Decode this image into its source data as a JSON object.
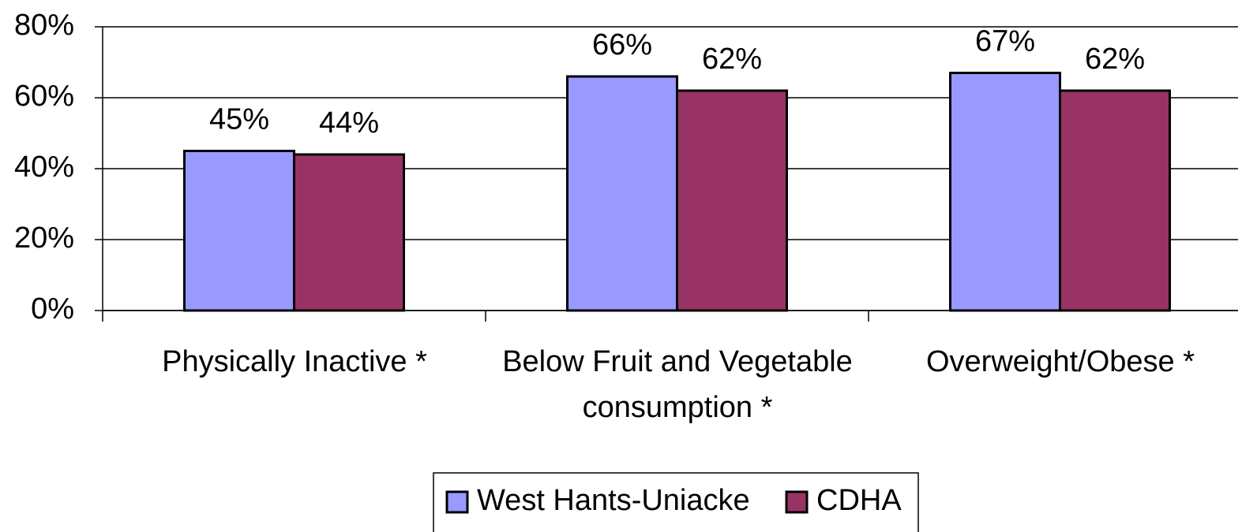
{
  "chart_data": {
    "type": "bar",
    "categories": [
      "Physically Inactive *",
      "Below Fruit and Vegetable consumption *",
      "Overweight/Obese *"
    ],
    "series": [
      {
        "name": "West Hants-Uniacke",
        "color": "#9999ff",
        "values": [
          45,
          66,
          67
        ],
        "value_labels": [
          "45%",
          "66%",
          "67%"
        ]
      },
      {
        "name": "CDHA",
        "color": "#993366",
        "values": [
          44,
          62,
          62
        ],
        "value_labels": [
          "44%",
          "62%",
          "62%"
        ]
      }
    ],
    "ylim": [
      0,
      80
    ],
    "yticks": [
      {
        "value": 0,
        "label": "0%"
      },
      {
        "value": 20,
        "label": "20%"
      },
      {
        "value": 40,
        "label": "40%"
      },
      {
        "value": 60,
        "label": "60%"
      },
      {
        "value": 80,
        "label": "80%"
      }
    ],
    "grid": true,
    "legend": "bottom"
  }
}
